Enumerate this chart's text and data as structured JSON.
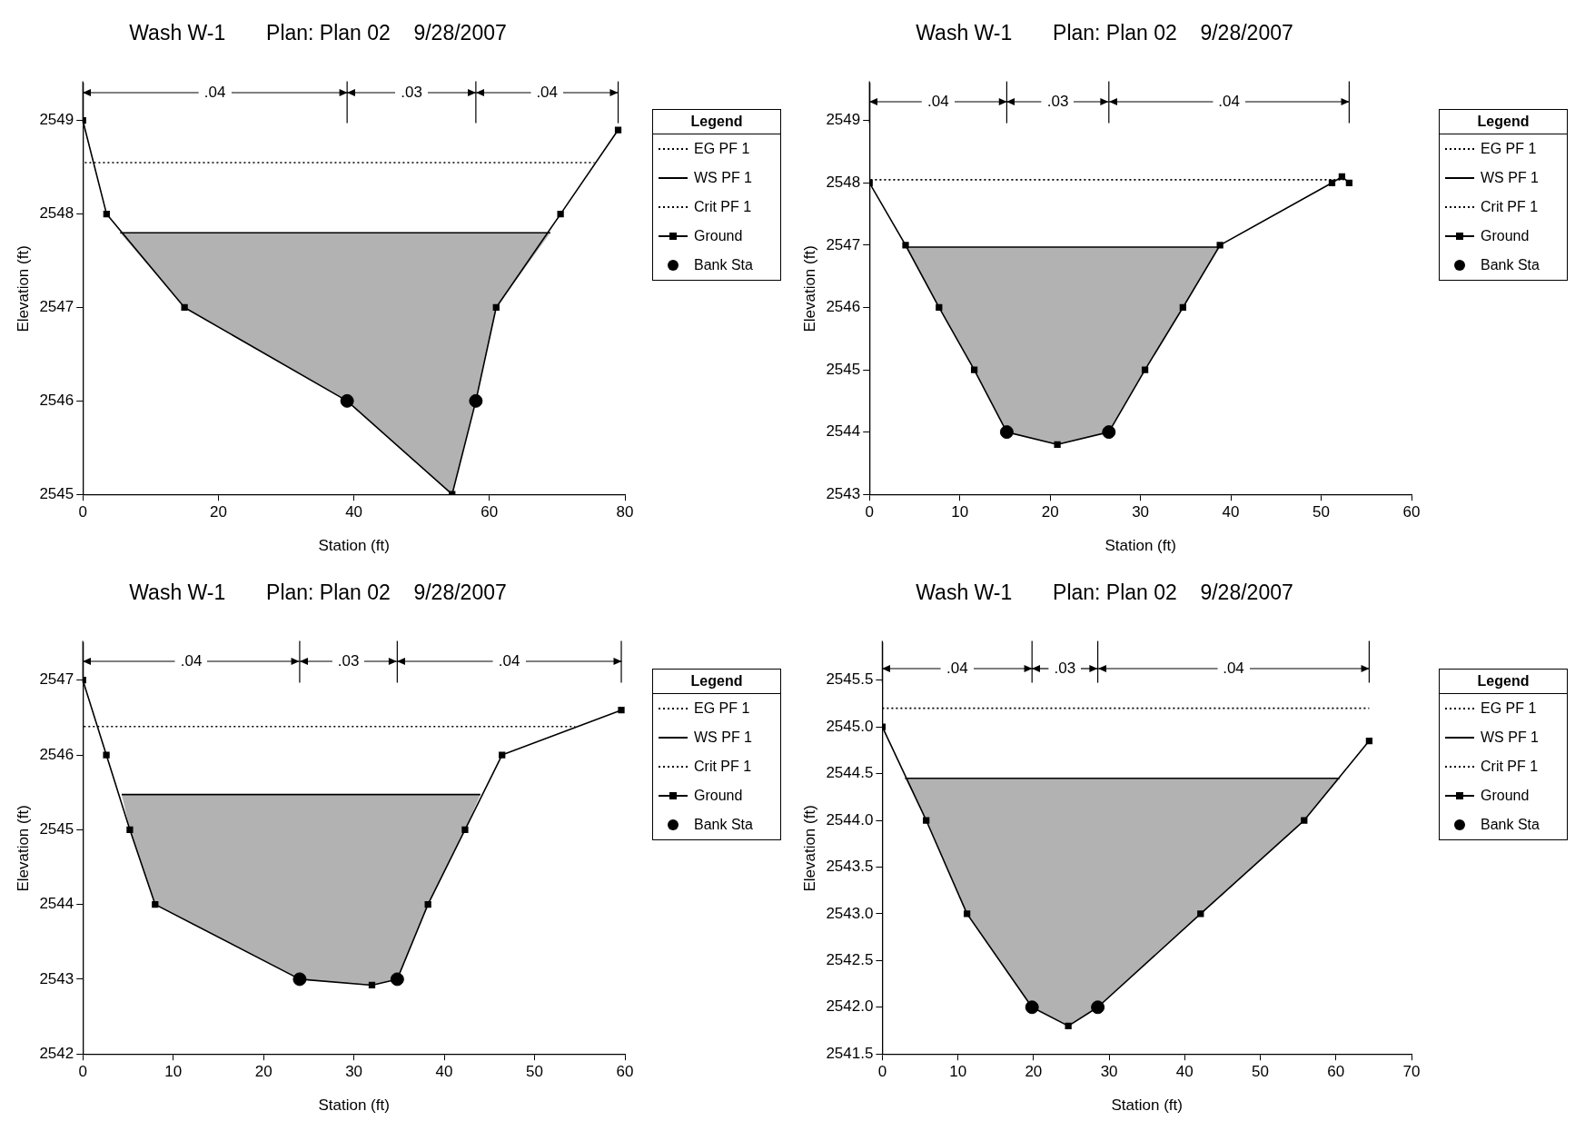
{
  "chart_data": [
    {
      "type": "line",
      "title": "Wash W-1       Plan: Plan 02    9/28/2007",
      "xlabel": "Station (ft)",
      "ylabel": "Elevation (ft)",
      "legend_title": "Legend",
      "legend": "right",
      "grid": false,
      "xlim": [
        0,
        80
      ],
      "xticks": [
        0,
        20,
        40,
        60,
        80
      ],
      "ylim": [
        2545,
        2549.4
      ],
      "yticks": [
        2545,
        2546,
        2547,
        2548,
        2549
      ],
      "series": [
        {
          "name": "EG PF 1",
          "type": "line",
          "line_style": "dotted",
          "color": "#000000",
          "x": [
            0,
            75.5
          ],
          "values": [
            2548.55,
            2548.55
          ]
        },
        {
          "name": "WS PF 1",
          "type": "line",
          "line_style": "solid",
          "color": "#000000",
          "x": [
            5.5,
            15,
            39,
            54.5,
            58,
            61,
            69
          ],
          "values": [
            2547.8,
            2547.8,
            2547.8,
            2547.8,
            2547.8,
            2547.8,
            2547.8
          ],
          "lower": [
            2547.8,
            2547,
            2546,
            2545,
            2546,
            2547,
            2547.8
          ],
          "upper": [
            2547.8,
            2547.8,
            2547.8,
            2547.8,
            2547.8,
            2547.8,
            2547.8
          ]
        },
        {
          "name": "Crit PF 1",
          "type": "line",
          "line_style": "dotted",
          "color": "#000000"
        },
        {
          "name": "Ground",
          "type": "line",
          "marker": "square",
          "line_style": "solid",
          "color": "#000000",
          "x": [
            0,
            3.5,
            15,
            39,
            54.5,
            58,
            61,
            70.5,
            79
          ],
          "values": [
            2549,
            2548,
            2547,
            2546,
            2545,
            2546,
            2547,
            2548,
            2548.9
          ]
        },
        {
          "name": "Bank Sta",
          "type": "scatter",
          "marker": "circle",
          "color": "#000000",
          "x": [
            39,
            58
          ],
          "values": [
            2546,
            2546
          ]
        }
      ],
      "ref_lines": [
        {
          "axis": "x",
          "value": 0,
          "label": null
        },
        {
          "axis": "x",
          "value": 39,
          "label": null
        },
        {
          "axis": "x",
          "value": 58,
          "label": null
        },
        {
          "axis": "x",
          "value": 79,
          "label": null
        }
      ],
      "annotations": [
        {
          "text": ".04",
          "x": 39,
          "y": 2549.3
        },
        {
          "text": ".03",
          "x": 58,
          "y": 2549.3
        },
        {
          "text": ".04",
          "x": 79,
          "y": 2549.3
        }
      ]
    },
    {
      "type": "line",
      "title": "Wash W-1       Plan: Plan 02    9/28/2007",
      "xlabel": "Station (ft)",
      "ylabel": "Elevation (ft)",
      "legend_title": "Legend",
      "legend": "right",
      "grid": false,
      "xlim": [
        0,
        60
      ],
      "xticks": [
        0,
        10,
        20,
        30,
        40,
        50,
        60
      ],
      "ylim": [
        2543,
        2549.6
      ],
      "yticks": [
        2543,
        2544,
        2545,
        2546,
        2547,
        2548,
        2549
      ],
      "series": [
        {
          "name": "EG PF 1",
          "type": "line",
          "line_style": "dotted",
          "color": "#000000",
          "x": [
            0,
            52.5
          ],
          "values": [
            2548.05,
            2548.05
          ]
        },
        {
          "name": "WS PF 1",
          "type": "line",
          "line_style": "solid",
          "color": "#000000",
          "x": [
            4,
            7.7,
            11.6,
            15.2,
            20.8,
            26.5,
            30.5,
            34.7,
            38.8
          ],
          "values": [
            2546.97,
            2546.97,
            2546.97,
            2546.97,
            2546.97,
            2546.97,
            2546.97,
            2546.97,
            2546.97
          ],
          "lower": [
            2546.97,
            2546,
            2545,
            2544,
            2543.8,
            2544,
            2545,
            2546,
            2546.97
          ],
          "upper": [
            2546.97,
            2546.97,
            2546.97,
            2546.97,
            2546.97,
            2546.97,
            2546.97,
            2546.97,
            2546.97
          ]
        },
        {
          "name": "Crit PF 1",
          "type": "line",
          "line_style": "dotted",
          "color": "#000000"
        },
        {
          "name": "Ground",
          "type": "line",
          "marker": "square",
          "line_style": "solid",
          "color": "#000000",
          "x": [
            0,
            4,
            7.7,
            11.6,
            15.2,
            20.8,
            26.5,
            30.5,
            34.7,
            38.8,
            51.2,
            52.3,
            53.1
          ],
          "values": [
            2548,
            2547,
            2546,
            2545,
            2544,
            2543.8,
            2544,
            2545,
            2546,
            2547,
            2548,
            2548.1,
            2548
          ]
        },
        {
          "name": "Bank Sta",
          "type": "scatter",
          "marker": "circle",
          "color": "#000000",
          "x": [
            15.2,
            26.5
          ],
          "values": [
            2544,
            2544
          ]
        }
      ],
      "ref_lines": [
        {
          "axis": "x",
          "value": 0,
          "label": null
        },
        {
          "axis": "x",
          "value": 15.2,
          "label": null
        },
        {
          "axis": "x",
          "value": 26.5,
          "label": null
        },
        {
          "axis": "x",
          "value": 53.1,
          "label": null
        }
      ],
      "annotations": [
        {
          "text": ".04",
          "x": 15.2,
          "y": 2549.3
        },
        {
          "text": ".03",
          "x": 26.5,
          "y": 2549.3
        },
        {
          "text": ".04",
          "x": 53.1,
          "y": 2549.3
        }
      ]
    },
    {
      "type": "line",
      "title": "Wash W-1       Plan: Plan 02    9/28/2007",
      "xlabel": "Station (ft)",
      "ylabel": "Elevation (ft)",
      "legend_title": "Legend",
      "legend": "right",
      "grid": false,
      "xlim": [
        0,
        60
      ],
      "xticks": [
        0,
        10,
        20,
        30,
        40,
        50,
        60
      ],
      "ylim": [
        2542,
        2547.5
      ],
      "yticks": [
        2542,
        2543,
        2544,
        2545,
        2546,
        2547
      ],
      "series": [
        {
          "name": "EG PF 1",
          "type": "line",
          "line_style": "dotted",
          "color": "#000000",
          "x": [
            0,
            54.5
          ],
          "values": [
            2546.38,
            2546.38
          ]
        },
        {
          "name": "WS PF 1",
          "type": "line",
          "line_style": "solid",
          "color": "#000000",
          "x": [
            4.3,
            5.2,
            8,
            24,
            32,
            34.8,
            38.2,
            42.3,
            44
          ],
          "values": [
            2545.47,
            2545.47,
            2545.47,
            2545.47,
            2545.47,
            2545.47,
            2545.47,
            2545.47,
            2545.47
          ],
          "lower": [
            2545.47,
            2545,
            2544,
            2543,
            2542.92,
            2543,
            2544,
            2545,
            2545.47
          ],
          "upper": [
            2545.47,
            2545.47,
            2545.47,
            2545.47,
            2545.47,
            2545.47,
            2545.47,
            2545.47,
            2545.47
          ]
        },
        {
          "name": "Crit PF 1",
          "type": "line",
          "line_style": "dotted",
          "color": "#000000"
        },
        {
          "name": "Ground",
          "type": "line",
          "marker": "square",
          "line_style": "solid",
          "color": "#000000",
          "x": [
            0,
            2.6,
            5.2,
            8,
            24,
            32,
            34.8,
            38.2,
            42.3,
            46.4,
            59.6
          ],
          "values": [
            2547,
            2546,
            2545,
            2544,
            2543,
            2542.92,
            2543,
            2544,
            2545,
            2546,
            2546.6
          ]
        },
        {
          "name": "Bank Sta",
          "type": "scatter",
          "marker": "circle",
          "color": "#000000",
          "x": [
            24,
            34.8
          ],
          "values": [
            2543,
            2543
          ]
        }
      ],
      "ref_lines": [
        {
          "axis": "x",
          "value": 0,
          "label": null
        },
        {
          "axis": "x",
          "value": 24,
          "label": null
        },
        {
          "axis": "x",
          "value": 34.8,
          "label": null
        },
        {
          "axis": "x",
          "value": 59.6,
          "label": null
        }
      ],
      "annotations": [
        {
          "text": ".04",
          "x": 24,
          "y": 2547.25
        },
        {
          "text": ".03",
          "x": 34.8,
          "y": 2547.25
        },
        {
          "text": ".04",
          "x": 59.6,
          "y": 2547.25
        }
      ]
    },
    {
      "type": "line",
      "title": "Wash W-1       Plan: Plan 02    9/28/2007",
      "xlabel": "Station (ft)",
      "ylabel": "Elevation (ft)",
      "legend_title": "Legend",
      "legend": "right",
      "grid": false,
      "xlim": [
        0,
        70
      ],
      "xticks": [
        0,
        10,
        20,
        30,
        40,
        50,
        60,
        70
      ],
      "ylim": [
        2541.5,
        2545.9
      ],
      "yticks": [
        {
          "value": 2541.5,
          "label": "2541.5"
        },
        {
          "value": 2542,
          "label": "2542.0"
        },
        {
          "value": 2542.5,
          "label": "2542.5"
        },
        {
          "value": 2543,
          "label": "2543.0"
        },
        {
          "value": 2543.5,
          "label": "2543.5"
        },
        {
          "value": 2544,
          "label": "2544.0"
        },
        {
          "value": 2544.5,
          "label": "2544.5"
        },
        {
          "value": 2545,
          "label": "2545.0"
        },
        {
          "value": 2545.5,
          "label": "2545.5"
        }
      ],
      "series": [
        {
          "name": "EG PF 1",
          "type": "line",
          "line_style": "dotted",
          "color": "#000000",
          "x": [
            0,
            64.4
          ],
          "values": [
            2545.2,
            2545.2
          ]
        },
        {
          "name": "WS PF 1",
          "type": "line",
          "line_style": "solid",
          "color": "#000000",
          "x": [
            3,
            5.8,
            11.2,
            19.8,
            24.6,
            28.5,
            42.1,
            55.8,
            60.5
          ],
          "values": [
            2544.45,
            2544.45,
            2544.45,
            2544.45,
            2544.45,
            2544.45,
            2544.45,
            2544.45,
            2544.45
          ],
          "lower": [
            2544.45,
            2544,
            2543,
            2542,
            2541.8,
            2542,
            2543,
            2544,
            2544.45
          ],
          "upper": [
            2544.45,
            2544.45,
            2544.45,
            2544.45,
            2544.45,
            2544.45,
            2544.45,
            2544.45,
            2544.45
          ]
        },
        {
          "name": "Crit PF 1",
          "type": "line",
          "line_style": "dotted",
          "color": "#000000"
        },
        {
          "name": "Ground",
          "type": "line",
          "marker": "square",
          "line_style": "solid",
          "color": "#000000",
          "x": [
            0,
            5.8,
            11.2,
            19.8,
            24.6,
            28.5,
            42.1,
            55.8,
            64.4
          ],
          "values": [
            2545,
            2544,
            2543,
            2542,
            2541.8,
            2542,
            2543,
            2544,
            2544.85
          ]
        },
        {
          "name": "Bank Sta",
          "type": "scatter",
          "marker": "circle",
          "color": "#000000",
          "x": [
            19.8,
            28.5
          ],
          "values": [
            2542,
            2542
          ]
        }
      ],
      "ref_lines": [
        {
          "axis": "x",
          "value": 0,
          "label": null
        },
        {
          "axis": "x",
          "value": 19.8,
          "label": null
        },
        {
          "axis": "x",
          "value": 28.5,
          "label": null
        },
        {
          "axis": "x",
          "value": 64.4,
          "label": null
        }
      ],
      "annotations": [
        {
          "text": ".04",
          "x": 19.8,
          "y": 2545.62
        },
        {
          "text": ".03",
          "x": 28.5,
          "y": 2545.62
        },
        {
          "text": ".04",
          "x": 64.4,
          "y": 2545.62
        }
      ]
    }
  ]
}
